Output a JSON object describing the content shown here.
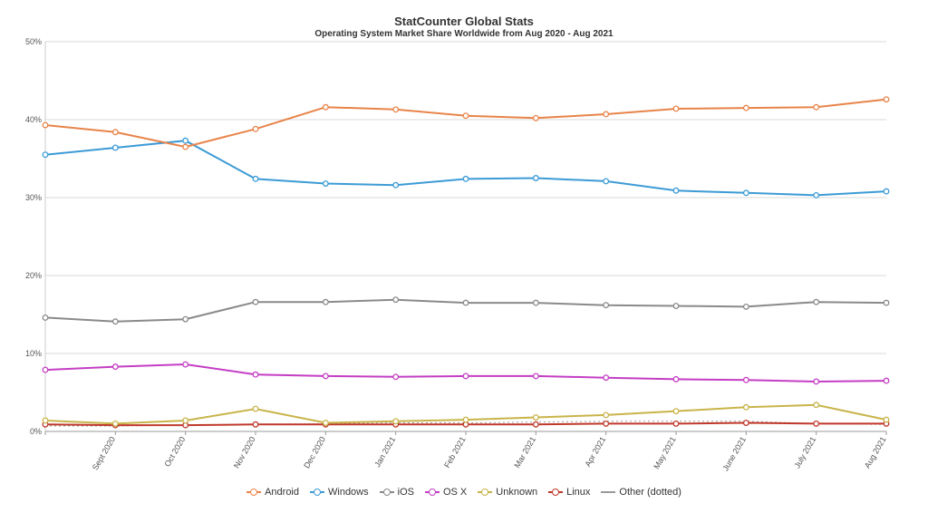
{
  "chart_data": {
    "type": "line",
    "title": "StatCounter Global Stats",
    "subtitle": "Operating System Market Share Worldwide from Aug 2020 - Aug 2021",
    "xlabel": "",
    "ylabel": "",
    "categories": [
      "Aug 2020",
      "Sept 2020",
      "Oct 2020",
      "Nov 2020",
      "Dec 2020",
      "Jan 2021",
      "Feb 2021",
      "Mar 2021",
      "Apr 2021",
      "May 2021",
      "June 2021",
      "July 2021",
      "Aug 2021"
    ],
    "ylim": [
      0,
      50
    ],
    "y_ticks": [
      0,
      10,
      20,
      30,
      40,
      50
    ],
    "y_tick_labels": [
      "0%",
      "10%",
      "20%",
      "30%",
      "40%",
      "50%"
    ],
    "grid": true,
    "legend_position": "bottom",
    "series": [
      {
        "name": "Android",
        "color": "#e8844a",
        "dotted": false,
        "values": [
          39.3,
          38.4,
          36.5,
          38.8,
          41.6,
          41.3,
          40.5,
          40.2,
          40.7,
          41.4,
          41.5,
          41.6,
          42.6
        ]
      },
      {
        "name": "Windows",
        "color": "#3d9bd6",
        "dotted": false,
        "values": [
          35.5,
          36.4,
          37.3,
          32.4,
          31.8,
          31.6,
          32.4,
          32.5,
          32.1,
          30.9,
          30.6,
          30.3,
          30.8
        ]
      },
      {
        "name": "iOS",
        "color": "#8a8a8a",
        "dotted": false,
        "values": [
          14.6,
          14.1,
          14.4,
          16.6,
          16.6,
          16.9,
          16.5,
          16.5,
          16.2,
          16.1,
          16.0,
          16.6,
          16.5
        ]
      },
      {
        "name": "OS X",
        "color": "#c43ec4",
        "dotted": false,
        "values": [
          7.9,
          8.3,
          8.6,
          7.3,
          7.1,
          7.0,
          7.1,
          7.1,
          6.9,
          6.7,
          6.6,
          6.4,
          6.5
        ]
      },
      {
        "name": "Unknown",
        "color": "#c8b44a",
        "dotted": false,
        "values": [
          1.4,
          1.0,
          1.4,
          2.9,
          1.1,
          1.3,
          1.5,
          1.8,
          2.1,
          2.6,
          3.1,
          3.4,
          1.5
        ]
      },
      {
        "name": "Linux",
        "color": "#c0392b",
        "dotted": false,
        "values": [
          0.9,
          0.8,
          0.8,
          0.9,
          0.9,
          0.9,
          0.9,
          0.9,
          1.0,
          1.0,
          1.1,
          1.0,
          1.0
        ]
      },
      {
        "name": "Other (dotted)",
        "color": "#999999",
        "dotted": true,
        "values": [
          0.7,
          0.7,
          0.8,
          0.9,
          1.0,
          1.1,
          1.1,
          1.2,
          1.3,
          1.3,
          1.3,
          1.0,
          0.9
        ]
      }
    ]
  }
}
